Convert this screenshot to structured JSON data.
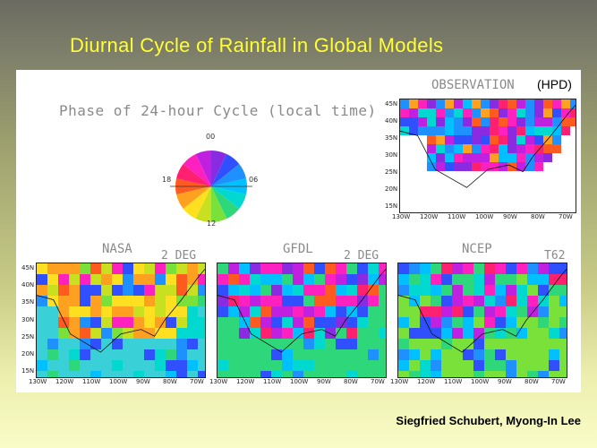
{
  "slide": {
    "title": "Diurnal Cycle of Rainfall in Global Models",
    "credit": "Siegfried Schubert, Myong-In Lee"
  },
  "phase_wheel": {
    "title": "Phase of 24-hour Cycle (local time)",
    "labels": {
      "top": "00",
      "right": "06",
      "bottom": "12",
      "left": "18"
    },
    "colors": [
      "#8a2be2",
      "#3050ff",
      "#1e90ff",
      "#00c0ff",
      "#00d8d0",
      "#2ed87a",
      "#7ae03a",
      "#c8e020",
      "#ffe020",
      "#ffa020",
      "#ff5a20",
      "#ff2070",
      "#ff20c0",
      "#c020e0"
    ]
  },
  "observation": {
    "label": "OBSERVATION",
    "source": "(HPD)",
    "lat_labels": [
      "45N",
      "40N",
      "35N",
      "30N",
      "25N",
      "20N",
      "15N"
    ],
    "lon_labels": [
      "130W",
      "120W",
      "110W",
      "100W",
      "90W",
      "80W",
      "70W"
    ]
  },
  "models": [
    {
      "name": "NASA",
      "resolution": "2 DEG"
    },
    {
      "name": "GFDL",
      "resolution": "2 DEG"
    },
    {
      "name": "NCEP",
      "resolution": "T62"
    }
  ],
  "model_lat_labels": [
    "45N",
    "40N",
    "35N",
    "30N",
    "25N",
    "20N",
    "15N"
  ],
  "model_lon_labels": [
    "130W",
    "120W",
    "110W",
    "100W",
    "90W",
    "80W",
    "70W"
  ]
}
